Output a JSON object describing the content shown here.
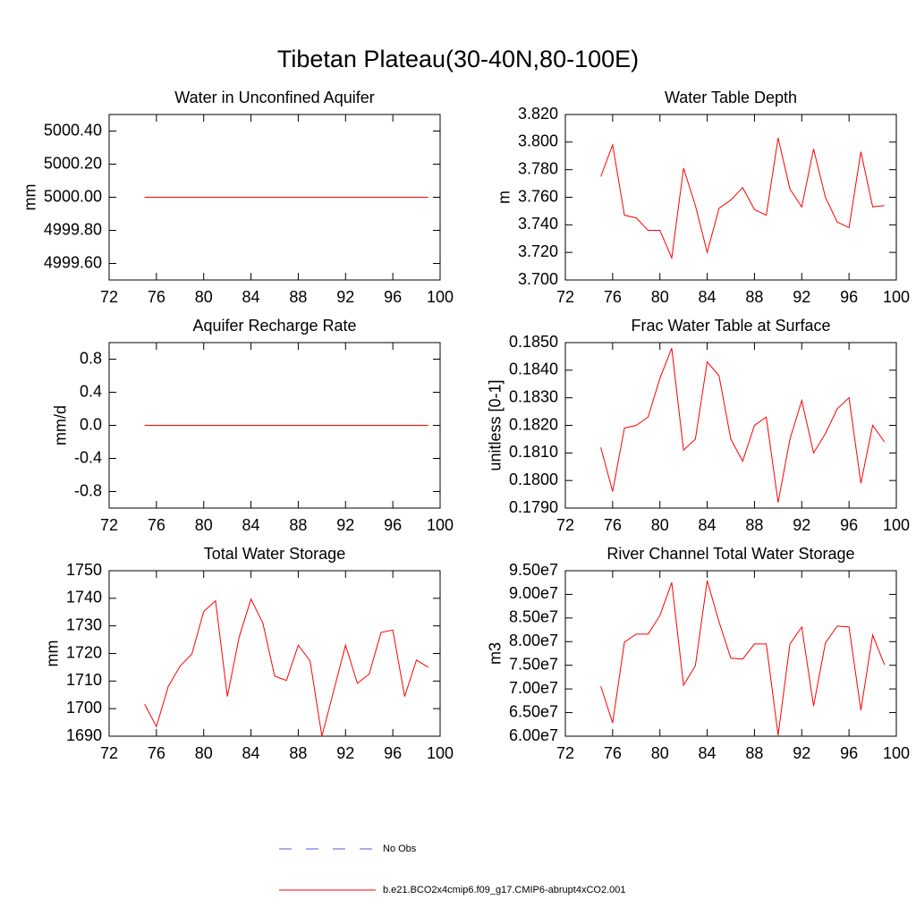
{
  "title": "Tibetan Plateau(30-40N,80-100E)",
  "chart_data": [
    {
      "type": "line",
      "title": "Water in Unconfined Aquifer",
      "ylabel": "mm",
      "color": "#ff0000",
      "x": [
        75,
        76,
        77,
        78,
        79,
        80,
        81,
        82,
        83,
        84,
        85,
        86,
        87,
        88,
        89,
        90,
        91,
        92,
        93,
        94,
        95,
        96,
        97,
        98,
        99
      ],
      "values": [
        5000,
        5000,
        5000,
        5000,
        5000,
        5000,
        5000,
        5000,
        5000,
        5000,
        5000,
        5000,
        5000,
        5000,
        5000,
        5000,
        5000,
        5000,
        5000,
        5000,
        5000,
        5000,
        5000,
        5000,
        5000
      ],
      "xlim": [
        72,
        100
      ],
      "xticks": [
        72,
        76,
        80,
        84,
        88,
        92,
        96,
        100
      ],
      "ylim": [
        4999.5,
        5000.5
      ],
      "yticks": [
        {
          "value": 4999.6,
          "label": "4999.60"
        },
        {
          "value": 4999.8,
          "label": "4999.80"
        },
        {
          "value": 5000,
          "label": "5000.00"
        },
        {
          "value": 5000.2,
          "label": "5000.20"
        },
        {
          "value": 5000.4,
          "label": "5000.40"
        }
      ]
    },
    {
      "type": "line",
      "title": "Water Table Depth",
      "ylabel": "m",
      "color": "#ff0000",
      "x": [
        75,
        76,
        77,
        78,
        79,
        80,
        81,
        82,
        83,
        84,
        85,
        86,
        87,
        88,
        89,
        90,
        91,
        92,
        93,
        94,
        95,
        96,
        97,
        98,
        99
      ],
      "values": [
        3.775,
        3.798,
        3.747,
        3.745,
        3.736,
        3.736,
        3.716,
        3.781,
        3.754,
        3.72,
        3.752,
        3.758,
        3.767,
        3.751,
        3.747,
        3.803,
        3.766,
        3.753,
        3.795,
        3.76,
        3.742,
        3.738,
        3.793,
        3.753,
        3.754
      ],
      "xlim": [
        72,
        100
      ],
      "xticks": [
        72,
        76,
        80,
        84,
        88,
        92,
        96,
        100
      ],
      "ylim": [
        3.7,
        3.82
      ],
      "yticks": [
        {
          "value": 3.7,
          "label": "3.700"
        },
        {
          "value": 3.72,
          "label": "3.720"
        },
        {
          "value": 3.74,
          "label": "3.740"
        },
        {
          "value": 3.76,
          "label": "3.760"
        },
        {
          "value": 3.78,
          "label": "3.780"
        },
        {
          "value": 3.8,
          "label": "3.800"
        },
        {
          "value": 3.82,
          "label": "3.820"
        }
      ]
    },
    {
      "type": "line",
      "title": "Aquifer Recharge Rate",
      "ylabel": "mm/d",
      "color": "#ff0000",
      "x": [
        75,
        76,
        77,
        78,
        79,
        80,
        81,
        82,
        83,
        84,
        85,
        86,
        87,
        88,
        89,
        90,
        91,
        92,
        93,
        94,
        95,
        96,
        97,
        98,
        99
      ],
      "values": [
        0,
        0,
        0,
        0,
        0,
        0,
        0,
        0,
        0,
        0,
        0,
        0,
        0,
        0,
        0,
        0,
        0,
        0,
        0,
        0,
        0,
        0,
        0,
        0,
        0
      ],
      "xlim": [
        72,
        100
      ],
      "xticks": [
        72,
        76,
        80,
        84,
        88,
        92,
        96,
        100
      ],
      "ylim": [
        -1,
        1
      ],
      "yticks": [
        -0.8,
        -0.4,
        {
          "value": 0,
          "label": "0.0"
        },
        0.4,
        0.8
      ]
    },
    {
      "type": "line",
      "title": "Frac Water Table at Surface",
      "ylabel": "unitless [0-1]",
      "color": "#ff0000",
      "x": [
        75,
        76,
        77,
        78,
        79,
        80,
        81,
        82,
        83,
        84,
        85,
        86,
        87,
        88,
        89,
        90,
        91,
        92,
        93,
        94,
        95,
        96,
        97,
        98,
        99
      ],
      "values": [
        0.1812,
        0.1796,
        0.1819,
        0.182,
        0.1823,
        0.1837,
        0.1848,
        0.1811,
        0.1815,
        0.1843,
        0.1838,
        0.1815,
        0.1807,
        0.182,
        0.1823,
        0.1792,
        0.1815,
        0.1829,
        0.181,
        0.1817,
        0.1826,
        0.183,
        0.1799,
        0.182,
        0.1814
      ],
      "xlim": [
        72,
        100
      ],
      "xticks": [
        72,
        76,
        80,
        84,
        88,
        92,
        96,
        100
      ],
      "ylim": [
        0.179,
        0.185
      ],
      "yticks": [
        {
          "value": 0.179,
          "label": "0.1790"
        },
        {
          "value": 0.18,
          "label": "0.1800"
        },
        {
          "value": 0.181,
          "label": "0.1810"
        },
        {
          "value": 0.182,
          "label": "0.1820"
        },
        {
          "value": 0.183,
          "label": "0.1830"
        },
        {
          "value": 0.184,
          "label": "0.1840"
        },
        {
          "value": 0.185,
          "label": "0.1850"
        }
      ]
    },
    {
      "type": "line",
      "title": "Total Water Storage",
      "ylabel": "mm",
      "color": "#ff0000",
      "x": [
        75,
        76,
        77,
        78,
        79,
        80,
        81,
        82,
        83,
        84,
        85,
        86,
        87,
        88,
        89,
        90,
        91,
        92,
        93,
        94,
        95,
        96,
        97,
        98,
        99
      ],
      "values": [
        1701.6,
        1693.5,
        1708,
        1715.4,
        1719.8,
        1735.2,
        1739.1,
        1704.4,
        1725.9,
        1739.7,
        1731.1,
        1711.8,
        1710.2,
        1723,
        1717.3,
        1690,
        1706.5,
        1723,
        1709.2,
        1712.5,
        1727.6,
        1728.5,
        1704.4,
        1717.6,
        1715
      ],
      "xlim": [
        72,
        100
      ],
      "xticks": [
        72,
        76,
        80,
        84,
        88,
        92,
        96,
        100
      ],
      "ylim": [
        1690,
        1750
      ],
      "yticks": [
        1690,
        1700,
        1710,
        1720,
        1730,
        1740,
        1750
      ]
    },
    {
      "type": "line",
      "title": "River Channel Total Water Storage",
      "ylabel": "m3",
      "color": "#ff0000",
      "x": [
        75,
        76,
        77,
        78,
        79,
        80,
        81,
        82,
        83,
        84,
        85,
        86,
        87,
        88,
        89,
        90,
        91,
        92,
        93,
        94,
        95,
        96,
        97,
        98,
        99
      ],
      "values": [
        70600000,
        62800000,
        79900000,
        81600000,
        81600000,
        85500000,
        92500000,
        70800000,
        74900000,
        92900000,
        84200000,
        76500000,
        76300000,
        79500000,
        79500000,
        60200000,
        79500000,
        83100000,
        66400000,
        79700000,
        83300000,
        83100000,
        65500000,
        81400000,
        75100000
      ],
      "xlim": [
        72,
        100
      ],
      "xticks": [
        72,
        76,
        80,
        84,
        88,
        92,
        96,
        100
      ],
      "ylim": [
        60000000,
        95000000
      ],
      "yticks": [
        {
          "value": 60000000,
          "label": "6.00e7"
        },
        {
          "value": 65000000,
          "label": "6.50e7"
        },
        {
          "value": 70000000,
          "label": "7.00e7"
        },
        {
          "value": 75000000,
          "label": "7.50e7"
        },
        {
          "value": 80000000,
          "label": "8.00e7"
        },
        {
          "value": 85000000,
          "label": "8.50e7"
        },
        {
          "value": 90000000,
          "label": "9.00e7"
        },
        {
          "value": 95000000,
          "label": "9.50e7"
        }
      ]
    }
  ],
  "legend": [
    {
      "name": "No Obs",
      "color": "#5a5ad8",
      "dashed": true
    },
    {
      "name": "b.e21.BCO2x4cmip6.f09_g17.CMIP6-abrupt4xCO2.001",
      "color": "#ff0000",
      "dashed": false
    }
  ]
}
